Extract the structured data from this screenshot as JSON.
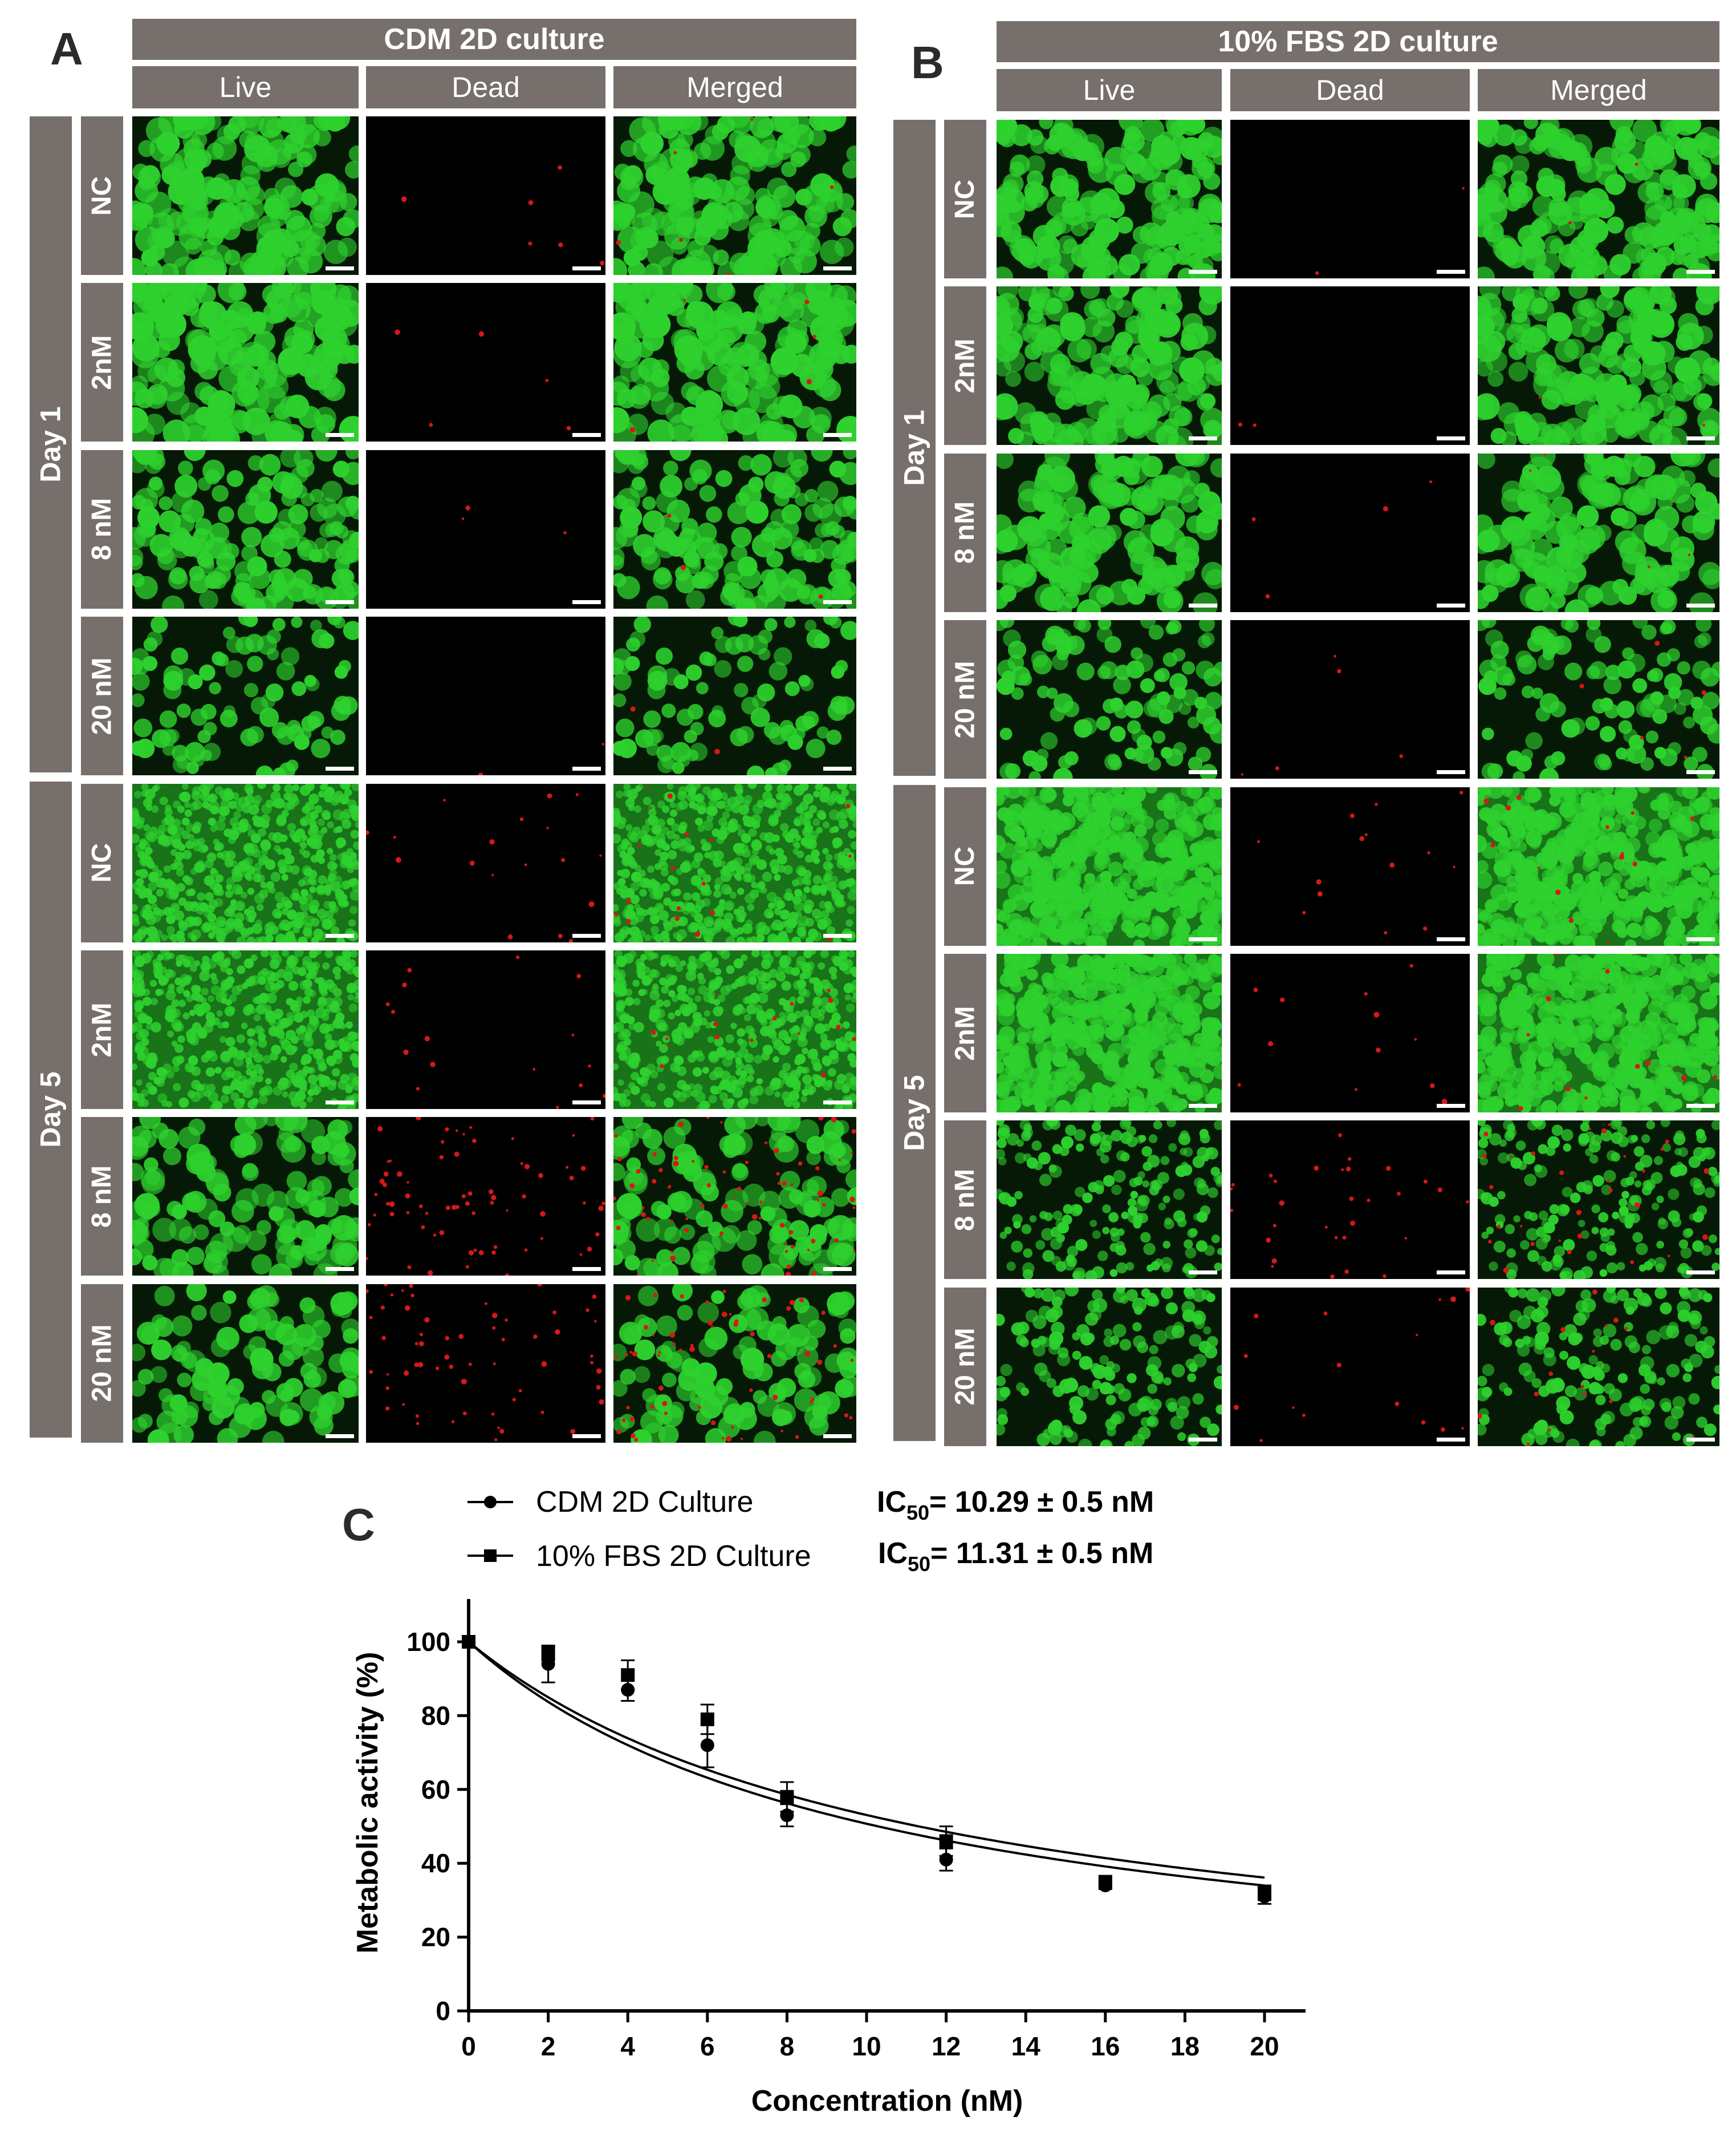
{
  "panel_a": {
    "letter": "A",
    "title": "CDM 2D culture",
    "columns": [
      "Live",
      "Dead",
      "Merged"
    ],
    "day_labels": [
      "Day 1",
      "Day 5"
    ],
    "conditions": [
      "NC",
      "2nM",
      "8 nM",
      "20 nM"
    ]
  },
  "panel_b": {
    "letter": "B",
    "title": "10% FBS 2D culture",
    "columns": [
      "Live",
      "Dead",
      "Merged"
    ],
    "day_labels": [
      "Day 1",
      "Day 5"
    ],
    "conditions": [
      "NC",
      "2nM",
      "8 nM",
      "20 nM"
    ]
  },
  "panel_c": {
    "letter": "C",
    "legend": [
      {
        "name": "CDM 2D Culture",
        "marker": "circle",
        "ic50_prefix": "IC",
        "ic50_sub": "50",
        "ic50_value": "= 10.29 ± 0.5 nM"
      },
      {
        "name": "10% FBS 2D Culture",
        "marker": "square",
        "ic50_prefix": "IC",
        "ic50_sub": "50",
        "ic50_value": "= 11.31 ± 0.5 nM"
      }
    ]
  },
  "colors": {
    "header_bar": "#766f6c",
    "live_stain": "#2ed12e",
    "dead_stain": "#d61818",
    "image_background": "#000000",
    "plot_ink": "#000000"
  },
  "chart_data": {
    "type": "scatter",
    "xlabel": "Concentration (nM)",
    "ylabel": "Metabolic activity (%)",
    "xlim": [
      0,
      20
    ],
    "ylim": [
      0,
      100
    ],
    "xticks": [
      0,
      2,
      4,
      6,
      8,
      10,
      12,
      14,
      16,
      18,
      20
    ],
    "yticks": [
      0,
      20,
      40,
      60,
      80,
      100
    ],
    "grid": false,
    "legend_position": "top",
    "series": [
      {
        "name": "CDM 2D Culture",
        "marker": "circle",
        "x": [
          0,
          2,
          4,
          6,
          8,
          12,
          16,
          20
        ],
        "y": [
          100,
          94,
          87,
          72,
          53,
          41,
          34,
          31
        ],
        "error": [
          0,
          5,
          3,
          6,
          3,
          3,
          1,
          2
        ],
        "ic50": 10.29,
        "fit_bottom": 0
      },
      {
        "name": "10% FBS 2D Culture",
        "marker": "square",
        "x": [
          0,
          2,
          4,
          6,
          8,
          12,
          16,
          20
        ],
        "y": [
          100,
          97,
          91,
          79,
          58,
          46,
          35,
          32
        ],
        "error": [
          0,
          2,
          4,
          4,
          4,
          4,
          1,
          2
        ],
        "ic50": 11.31,
        "fit_bottom": 0
      }
    ]
  }
}
